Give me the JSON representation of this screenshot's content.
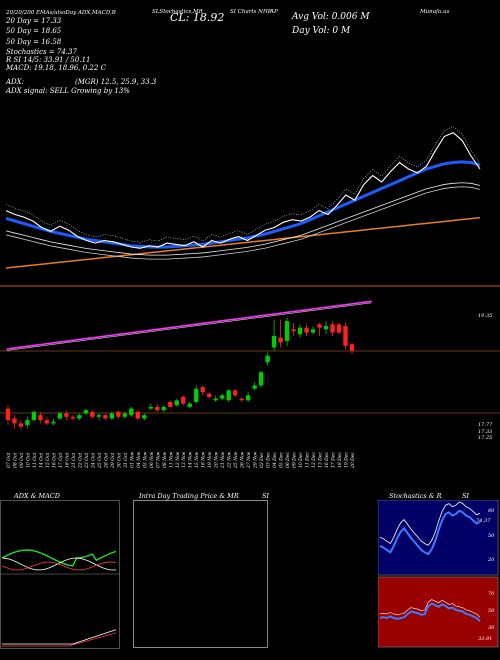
{
  "header": {
    "line1": "20/20/200 EMAs/alsoDay ADX,MACD,B",
    "line1_tail": "SLStochastics,MR",
    "line1_tail2": "SI Charts NHP",
    "line1_tail3": "AP",
    "line1_tail4": "Munafa.us",
    "ema20": "20 Day = 17.33",
    "ema50": "50 Day = 18.65",
    "ema100": "50 Day = 16.58",
    "stoch": "Stochastics = 74.37",
    "rsi": "R          SI 14/5: 33.91 / 50.11",
    "macd": "MACD: 19.18, 18.96, 0.22  C",
    "adx_label": "ADX:",
    "adx_vals": "(MGR) 12.5, 25.9, 33.3",
    "adx_signal": "ADX  signal: SELL Growing by 13%",
    "close": "CL: 18.92",
    "avg_vol": "Avg Vol: 0.006   M",
    "day_vol": "Day Vol: 0   M"
  },
  "price_labels": {
    "top_right": "19.35",
    "bottom_right_1": "17.77",
    "bottom_right_2": "17.33",
    "bottom_right_3": "17.25"
  },
  "dates": [
    "07 Oct",
    "08 Oct",
    "09 Oct",
    "10 Oct",
    "11 Oct",
    "14 Oct",
    "15 Oct",
    "16 Oct",
    "17 Oct",
    "18 Oct",
    "21 Oct",
    "22 Oct",
    "23 Oct",
    "24 Oct",
    "25 Oct",
    "28 Oct",
    "29 Oct",
    "30 Oct",
    "31 Oct",
    "01 Nov",
    "04 Nov",
    "05 Nov",
    "06 Nov",
    "07 Nov",
    "08 Nov",
    "11 Nov",
    "12 Nov",
    "13 Nov",
    "14 Nov",
    "15 Nov",
    "18 Nov",
    "19 Nov",
    "20 Nov",
    "21 Nov",
    "22 Nov",
    "25 Nov",
    "26 Nov",
    "27 Nov",
    "29 Nov",
    "02 Dec",
    "03 Dec",
    "04 Dec",
    "05 Dec",
    "06 Dec",
    "09 Dec",
    "10 Dec",
    "11 Dec",
    "12 Dec",
    "13 Dec",
    "16 Dec",
    "17 Dec",
    "18 Dec",
    "19 Dec",
    "20 Dec"
  ],
  "panels": {
    "adx_title": "ADX  & MACD",
    "intraday_title": "Intra  Day Trading Price  & MR",
    "intraday_tail": "SI",
    "stoch_title": "Stochastics & R",
    "stoch_tail": "SI",
    "stoch_axis": [
      "80",
      "50",
      "20"
    ],
    "stoch_value": "74.37",
    "rsi_axis": [
      "70",
      "50",
      "30"
    ],
    "rsi_value": "33.91"
  },
  "colors": {
    "up": "#00cc00",
    "down": "#ff2020",
    "ema_blue": "#1e5bff",
    "ema_orange": "#e67e22",
    "bollinger": "#ff33ff",
    "stoch_bg": "#000066",
    "rsi_bg": "#990000"
  },
  "chart_data": {
    "type": "line",
    "ema_blue": [
      9.2,
      9.0,
      8.8,
      8.6,
      8.4,
      8.2,
      8.05,
      7.9,
      7.75,
      7.6,
      7.5,
      7.4,
      7.3,
      7.2,
      7.1,
      7.05,
      7.0,
      7.0,
      7.0,
      7.05,
      7.1,
      7.15,
      7.2,
      7.3,
      7.4,
      7.5,
      7.6,
      7.7,
      7.85,
      8.0,
      8.2,
      8.4,
      8.6,
      8.8,
      9.1,
      9.4,
      9.7,
      10.0,
      10.3,
      10.6,
      10.9,
      11.2,
      11.5,
      11.8,
      12.1,
      12.4,
      12.7,
      13.0,
      13.2,
      13.4,
      13.5,
      13.55,
      13.5,
      13.3
    ],
    "close_line": [
      9.8,
      9.5,
      9.3,
      9.0,
      8.5,
      8.2,
      8.6,
      8.3,
      7.8,
      7.5,
      7.3,
      7.5,
      7.4,
      7.2,
      7.0,
      6.9,
      7.1,
      7.0,
      7.3,
      7.2,
      7.1,
      7.4,
      7.0,
      7.5,
      7.3,
      7.6,
      7.8,
      7.5,
      7.9,
      8.3,
      8.5,
      8.9,
      9.1,
      9.0,
      9.3,
      9.8,
      9.5,
      10.2,
      11.0,
      10.6,
      11.8,
      12.5,
      12.0,
      12.8,
      13.5,
      13.0,
      12.7,
      13.2,
      14.4,
      15.5,
      15.8,
      15.2,
      14.0,
      13.0
    ],
    "candles": [
      {
        "o": 7.2,
        "c": 6.5,
        "h": 7.4,
        "l": 6.2
      },
      {
        "o": 6.6,
        "c": 6.3,
        "h": 6.8,
        "l": 6.0
      },
      {
        "o": 6.3,
        "c": 6.1,
        "h": 6.5,
        "l": 5.9
      },
      {
        "o": 6.2,
        "c": 6.5,
        "h": 6.7,
        "l": 6.0
      },
      {
        "o": 6.5,
        "c": 7.0,
        "h": 7.1,
        "l": 6.4
      },
      {
        "o": 6.8,
        "c": 6.5,
        "h": 7.0,
        "l": 6.3
      },
      {
        "o": 6.5,
        "c": 6.3,
        "h": 6.7,
        "l": 6.2
      },
      {
        "o": 6.3,
        "c": 6.4,
        "h": 6.6,
        "l": 6.2
      },
      {
        "o": 6.6,
        "c": 6.9,
        "h": 7.0,
        "l": 6.5
      },
      {
        "o": 6.9,
        "c": 6.7,
        "h": 7.1,
        "l": 6.5
      },
      {
        "o": 6.7,
        "c": 6.6,
        "h": 6.8,
        "l": 6.5
      },
      {
        "o": 6.6,
        "c": 6.8,
        "h": 6.9,
        "l": 6.5
      },
      {
        "o": 6.9,
        "c": 7.1,
        "h": 7.2,
        "l": 6.8
      },
      {
        "o": 7.0,
        "c": 6.7,
        "h": 7.1,
        "l": 6.6
      },
      {
        "o": 6.7,
        "c": 6.8,
        "h": 6.9,
        "l": 6.5
      },
      {
        "o": 6.8,
        "c": 6.6,
        "h": 6.9,
        "l": 6.5
      },
      {
        "o": 6.6,
        "c": 6.9,
        "h": 7.0,
        "l": 6.5
      },
      {
        "o": 7.0,
        "c": 6.7,
        "h": 7.1,
        "l": 6.6
      },
      {
        "o": 6.7,
        "c": 6.9,
        "h": 7.0,
        "l": 6.6
      },
      {
        "o": 6.8,
        "c": 7.2,
        "h": 7.3,
        "l": 6.7
      },
      {
        "o": 7.0,
        "c": 6.6,
        "h": 7.1,
        "l": 6.5
      },
      {
        "o": 6.6,
        "c": 6.8,
        "h": 6.9,
        "l": 6.5
      },
      {
        "o": 7.2,
        "c": 7.3,
        "h": 7.5,
        "l": 7.1
      },
      {
        "o": 7.3,
        "c": 7.1,
        "h": 7.5,
        "l": 7.0
      },
      {
        "o": 7.1,
        "c": 7.3,
        "h": 7.4,
        "l": 7.0
      },
      {
        "o": 7.6,
        "c": 7.3,
        "h": 7.7,
        "l": 7.2
      },
      {
        "o": 7.4,
        "c": 7.7,
        "h": 7.8,
        "l": 7.3
      },
      {
        "o": 7.9,
        "c": 7.5,
        "h": 8.0,
        "l": 7.4
      },
      {
        "o": 7.3,
        "c": 7.5,
        "h": 7.6,
        "l": 7.2
      },
      {
        "o": 7.6,
        "c": 8.4,
        "h": 8.6,
        "l": 7.5
      },
      {
        "o": 8.5,
        "c": 8.2,
        "h": 8.6,
        "l": 8.0
      },
      {
        "o": 8.1,
        "c": 7.9,
        "h": 8.2,
        "l": 7.8
      },
      {
        "o": 7.7,
        "c": 7.8,
        "h": 8.0,
        "l": 7.6
      },
      {
        "o": 7.8,
        "c": 8.0,
        "h": 8.1,
        "l": 7.7
      },
      {
        "o": 7.7,
        "c": 8.3,
        "h": 8.4,
        "l": 7.6
      },
      {
        "o": 8.3,
        "c": 8.0,
        "h": 8.4,
        "l": 7.9
      },
      {
        "o": 7.8,
        "c": 7.7,
        "h": 7.9,
        "l": 7.6
      },
      {
        "o": 7.7,
        "c": 8.0,
        "h": 8.2,
        "l": 7.6
      },
      {
        "o": 8.4,
        "c": 8.6,
        "h": 8.8,
        "l": 8.3
      },
      {
        "o": 8.6,
        "c": 9.4,
        "h": 9.5,
        "l": 8.5
      },
      {
        "o": 10.0,
        "c": 10.4,
        "h": 10.6,
        "l": 9.8
      },
      {
        "o": 10.9,
        "c": 11.6,
        "h": 12.6,
        "l": 10.7
      },
      {
        "o": 11.5,
        "c": 11.2,
        "h": 12.6,
        "l": 10.9
      },
      {
        "o": 11.3,
        "c": 12.5,
        "h": 12.7,
        "l": 11.0
      },
      {
        "o": 12.0,
        "c": 11.9,
        "h": 12.4,
        "l": 11.6
      },
      {
        "o": 11.7,
        "c": 12.1,
        "h": 12.3,
        "l": 11.5
      },
      {
        "o": 12.1,
        "c": 11.8,
        "h": 12.3,
        "l": 11.6
      },
      {
        "o": 11.8,
        "c": 12.0,
        "h": 12.2,
        "l": 11.7
      },
      {
        "o": 12.3,
        "c": 12.1,
        "h": 12.4,
        "l": 11.6
      },
      {
        "o": 12.0,
        "c": 12.2,
        "h": 12.5,
        "l": 11.7
      },
      {
        "o": 12.3,
        "c": 11.8,
        "h": 12.5,
        "l": 11.6
      },
      {
        "o": 12.3,
        "c": 11.8,
        "h": 12.4,
        "l": 11.7
      },
      {
        "o": 12.2,
        "c": 11.0,
        "h": 12.4,
        "l": 10.8
      },
      {
        "o": 11.1,
        "c": 10.7,
        "h": 11.2,
        "l": 10.5
      }
    ]
  }
}
